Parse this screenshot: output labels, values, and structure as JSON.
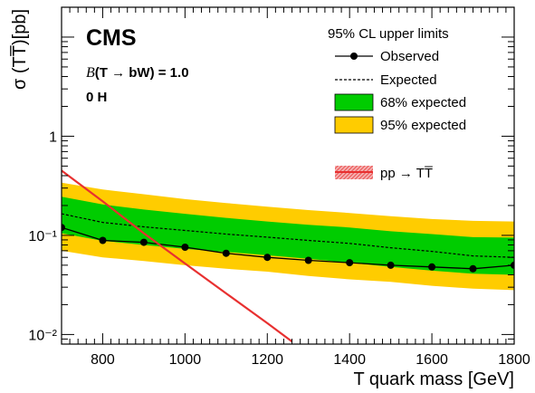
{
  "chart_data": {
    "type": "line",
    "experiment": "CMS",
    "annotation_prefix": "B",
    "annotation_body": "(T → bW) = 1.0",
    "annotation_region": "0 H",
    "xlabel": "T quark mass [GeV]",
    "ylabel": "σ (TT̅)[pb]",
    "xlim": [
      700,
      1800
    ],
    "ylim": [
      0.008,
      20
    ],
    "log_y": true,
    "grid": false,
    "legend_placement": "top-right",
    "legend_title": "95% CL upper limits",
    "x_ticks": [
      800,
      1000,
      1200,
      1400,
      1600,
      1800
    ],
    "x_tick_labels": [
      "800",
      "1000",
      "1200",
      "1400",
      "1600",
      "1800"
    ],
    "y_ticks": [
      0.01,
      0.1,
      1
    ],
    "y_tick_labels": [
      "10⁻²",
      "10⁻¹",
      "1"
    ],
    "x": [
      700,
      800,
      900,
      1000,
      1100,
      1200,
      1300,
      1400,
      1500,
      1600,
      1700,
      1800
    ],
    "series": [
      {
        "name": "Observed",
        "style": "solid-markers",
        "color": "#000000",
        "values": [
          0.12,
          0.089,
          0.085,
          0.076,
          0.066,
          0.06,
          0.056,
          0.053,
          0.05,
          0.048,
          0.046,
          0.05
        ]
      },
      {
        "name": "Expected",
        "style": "dashed",
        "color": "#000000",
        "values": [
          0.165,
          0.135,
          0.122,
          0.112,
          0.103,
          0.096,
          0.089,
          0.083,
          0.075,
          0.069,
          0.062,
          0.06
        ]
      },
      {
        "name": "68% expected",
        "style": "band",
        "color": "#00cc00",
        "low": [
          0.105,
          0.088,
          0.08,
          0.073,
          0.068,
          0.063,
          0.058,
          0.053,
          0.048,
          0.044,
          0.041,
          0.04
        ],
        "high": [
          0.245,
          0.205,
          0.182,
          0.165,
          0.15,
          0.138,
          0.128,
          0.12,
          0.11,
          0.103,
          0.096,
          0.095
        ]
      },
      {
        "name": "95% expected",
        "style": "band",
        "color": "#ffcc00",
        "low": [
          0.07,
          0.06,
          0.055,
          0.05,
          0.046,
          0.043,
          0.039,
          0.036,
          0.034,
          0.031,
          0.029,
          0.028
        ],
        "high": [
          0.34,
          0.29,
          0.26,
          0.232,
          0.212,
          0.195,
          0.18,
          0.168,
          0.156,
          0.146,
          0.14,
          0.138
        ]
      }
    ],
    "theory": {
      "name": "pp → TT̅",
      "color": "#e83030",
      "x": [
        700,
        800,
        900,
        1000,
        1100,
        1200,
        1260
      ],
      "values": [
        0.45,
        0.22,
        0.105,
        0.052,
        0.026,
        0.013,
        0.0085
      ]
    }
  }
}
